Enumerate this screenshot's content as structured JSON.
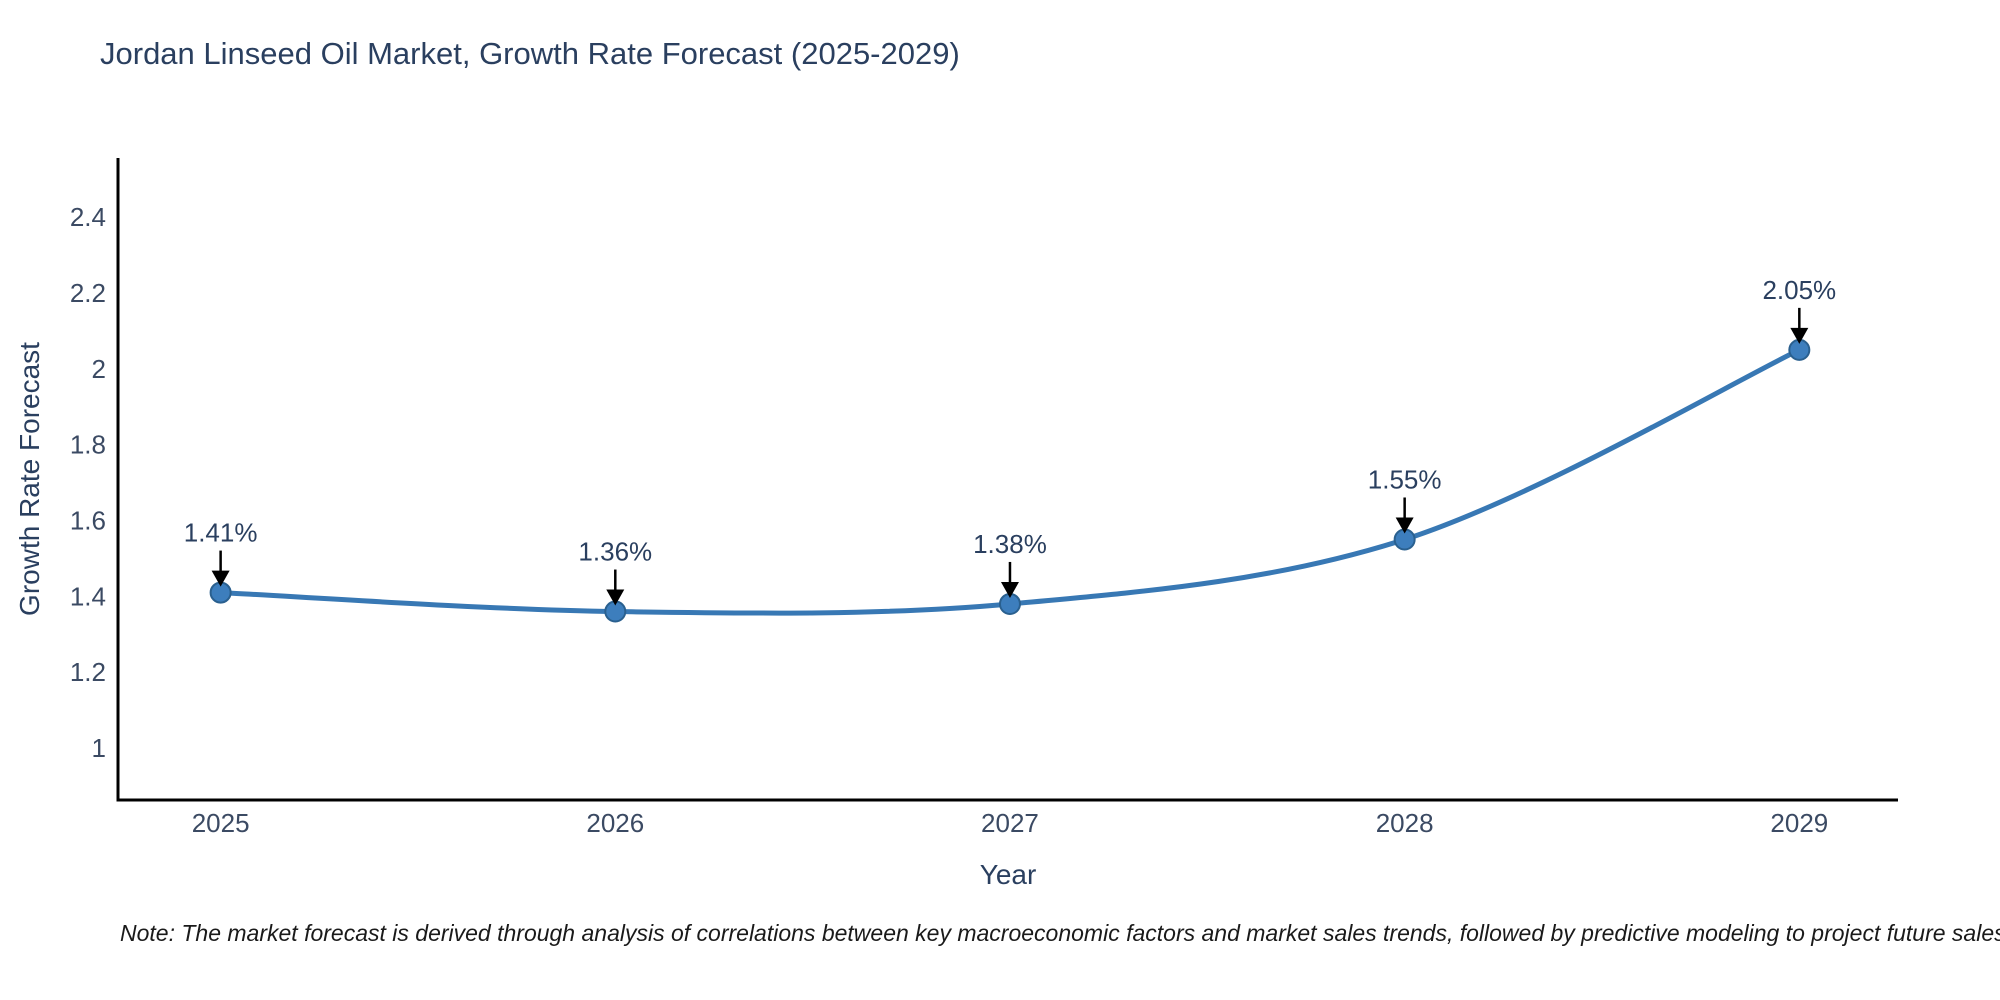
{
  "chart_data": {
    "type": "line",
    "title": "Jordan Linseed Oil Market, Growth Rate Forecast (2025-2029)",
    "xlabel": "Year",
    "ylabel": "Growth Rate Forecast",
    "x": [
      2025,
      2026,
      2027,
      2028,
      2029
    ],
    "y": [
      1.41,
      1.36,
      1.38,
      1.55,
      2.05
    ],
    "point_labels": [
      "1.41%",
      "1.36%",
      "1.38%",
      "1.55%",
      "2.05%"
    ],
    "x_tick_labels": [
      "2025",
      "2026",
      "2027",
      "2028",
      "2029"
    ],
    "x_tick_values": [
      2025,
      2026,
      2027,
      2028,
      2029
    ],
    "y_tick_labels": [
      "1",
      "1.2",
      "1.4",
      "1.6",
      "1.8",
      "2",
      "2.2",
      "2.4"
    ],
    "y_tick_values": [
      1,
      1.2,
      1.4,
      1.6,
      1.8,
      2,
      2.2,
      2.4
    ],
    "x_range": [
      2024.74,
      2029.25
    ],
    "y_range": [
      0.863,
      2.556
    ],
    "line_shape": "spline",
    "grid": false,
    "legend": "none",
    "colors": {
      "line": "#3878b4",
      "marker_fill": "#3d7ebd",
      "marker_edge": "#2a608f",
      "axis_line": "#000000",
      "tick_text": "#3b4a63",
      "annotation_text": "#2a3f5f",
      "annotation_arrow": "#000000"
    }
  },
  "note": "Note: The market forecast is derived through analysis of correlations between key macroeconomic factors and market sales trends, followed by predictive modeling to project future sales"
}
